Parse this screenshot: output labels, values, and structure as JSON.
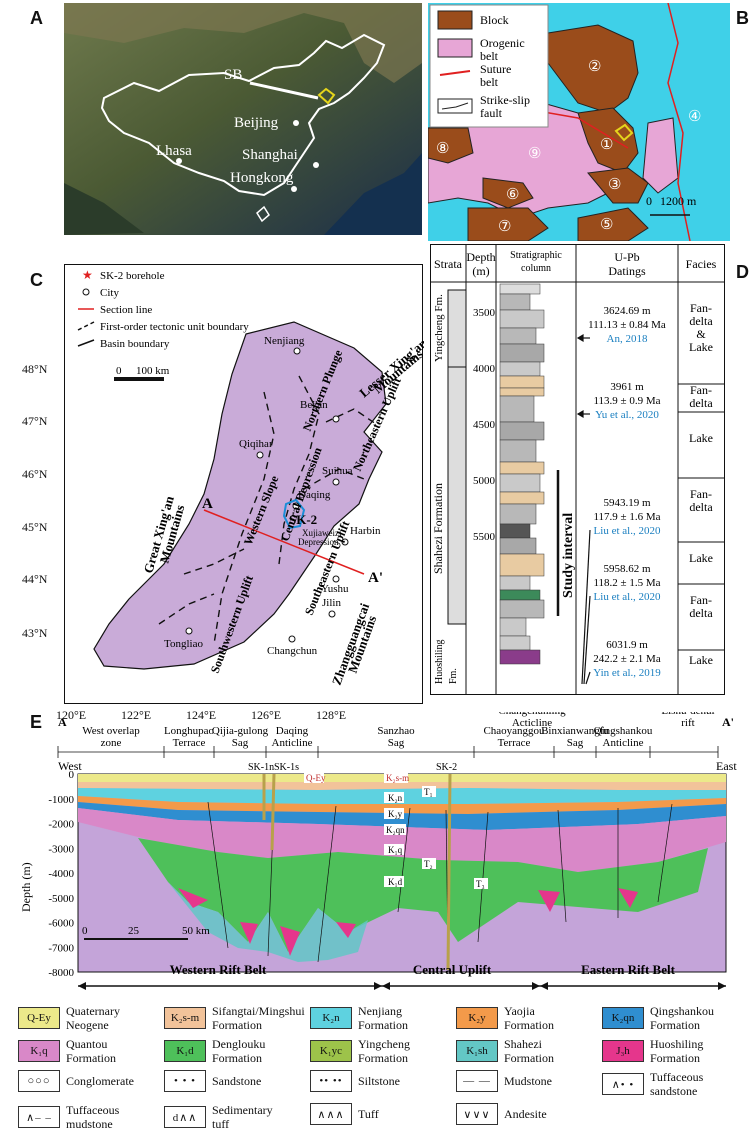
{
  "panels": {
    "A": "A",
    "B": "B",
    "C": "C",
    "D": "D",
    "E": "E"
  },
  "panel_a": {
    "sb": "SB",
    "beijing": "Beijing",
    "lhasa": "Lhasa",
    "shanghai": "Shanghai",
    "hongkong": "Hongkong"
  },
  "panel_b": {
    "legend": [
      {
        "label": "Block",
        "color": "#9a4c1b"
      },
      {
        "label": "Orogenic\nbelt",
        "color": "#e7a6d6"
      },
      {
        "label": "Suture\nbelt",
        "color": "#e02020"
      },
      {
        "label": "Strike-slip\nfault",
        "color": "#222222"
      }
    ],
    "circled": [
      "②",
      "①",
      "③",
      "④",
      "⑤",
      "⑥",
      "⑦",
      "⑧",
      "⑨"
    ],
    "scale_0": "0",
    "scale_len": "1200 m",
    "sea_color": "#3fd0e8"
  },
  "panel_c": {
    "legend": [
      "SK-2 borehole",
      "City",
      "Section line",
      "First-order tectonic unit boundary",
      "Basin boundary"
    ],
    "lat": [
      "48°N",
      "47°N",
      "46°N",
      "45°N",
      "44°N",
      "43°N"
    ],
    "lon": [
      "120°E",
      "122°E",
      "124°E",
      "126°E",
      "128°E"
    ],
    "scale_0": "0",
    "scale_len": "100 km",
    "cities": [
      "Nenjiang",
      "Bei'an",
      "Qiqihar",
      "Suihua",
      "Daqing",
      "Harbin",
      "Yushu",
      "Jilin",
      "Changchun",
      "Tongliao"
    ],
    "units": [
      "Northern Plunge",
      "Northeastern Uplift",
      "Western Slope",
      "Central Depression",
      "Southeastern Uplift",
      "Southwestern Uplift",
      "SK-2",
      "Xujiaweizi",
      "Depression"
    ],
    "mountains": [
      "Great Xing'an",
      "Mountains",
      "Lesser Xing'an",
      "Mountains",
      "Zhangguangcai",
      "Mountains"
    ],
    "line_a": "A",
    "line_a2": "A'",
    "basin_color": "#c9abd8"
  },
  "panel_d": {
    "headers": [
      "Strata",
      "Depth\n(m)",
      "Stratigraphic\ncolumn",
      "U-Pb\nDatings",
      "Facies"
    ],
    "fm": [
      "Yingcheng Fm.",
      "Shahezi Formation",
      "Huoshiling\nFm."
    ],
    "depths": [
      "3500",
      "4000",
      "4500",
      "5000",
      "5500"
    ],
    "datings": [
      {
        "depth": "3624.69 m",
        "age": "111.13 ± 0.84 Ma",
        "ref": "An, 2018"
      },
      {
        "depth": "3961 m",
        "age": "113.9 ± 0.9 Ma",
        "ref": "Yu et al., 2020"
      },
      {
        "depth": "5943.19 m",
        "age": "117.9 ± 1.6 Ma",
        "ref": "Liu et al., 2020"
      },
      {
        "depth": "5958.62 m",
        "age": "118.2 ± 1.5 Ma",
        "ref": "Liu et al., 2020"
      },
      {
        "depth": "6031.9 m",
        "age": "242.2 ± 2.1 Ma",
        "ref": "Yin et al., 2019"
      }
    ],
    "facies": [
      "Fan-\ndelta\n&\nLake",
      "Fan-\ndelta",
      "Lake",
      "Fan-\ndelta",
      "Lake",
      "Fan-\ndelta",
      "Lake"
    ],
    "study": "Study interval"
  },
  "panel_e": {
    "units_top": [
      "West overlap\nzone",
      "Longhupao\nTerrace",
      "Qijia-gulong\nSag",
      "Daqing\nAnticline",
      "Sanzhao\nSag",
      "Chaoyanggou\nTerrace",
      "Binxianwangfu\nSag",
      "Qingshankou\nAnticline"
    ],
    "units_high": [
      "Changchunling\nActicline",
      "Lishu-dehui\nrift"
    ],
    "end_a": "A",
    "end_a2": "A'",
    "west": "West",
    "east": "East",
    "ylabel": "Depth (m)",
    "yticks": [
      "0",
      "-1000",
      "-2000",
      "-3000",
      "-4000",
      "-5000",
      "-6000",
      "-7000",
      "-8000"
    ],
    "wells": [
      "SK-1n",
      "SK-1s",
      "SK-2"
    ],
    "scale": [
      "0",
      "25",
      "50 km"
    ],
    "belts": [
      "Western Rift Belt",
      "Central Uplift",
      "Eastern Rift Belt"
    ],
    "labels": [
      "Q-Ey",
      "K₂s-m",
      "K₂n",
      "K₂y",
      "K₂qn",
      "K₁q",
      "K₁d",
      "T₁",
      "T₂",
      "T₃"
    ]
  },
  "legend_rows": [
    [
      {
        "sw": "Q-Ey",
        "bg": "#ece98a",
        "text": "Quaternary\nNeogene"
      },
      {
        "sw": "K₂s-m",
        "bg": "#f2c39a",
        "text": "Sifangtai/Mingshui\nFormation"
      },
      {
        "sw": "K₂n",
        "bg": "#5ed2e0",
        "text": "Nenjiang\nFormation"
      },
      {
        "sw": "K₂y",
        "bg": "#f39a4a",
        "text": "Yaojia\nFormation"
      },
      {
        "sw": "K₂qn",
        "bg": "#2f8ed0",
        "text": "Qingshankou\nFormation"
      }
    ],
    [
      {
        "sw": "K₁q",
        "bg": "#d988c8",
        "text": "Quantou\nFormation"
      },
      {
        "sw": "K₁d",
        "bg": "#4ec05a",
        "text": "Denglouku\nFormation"
      },
      {
        "sw": "K₁yc",
        "bg": "#9dc34a",
        "text": "Yingcheng\nFormation"
      },
      {
        "sw": "K₁sh",
        "bg": "#63c7c5",
        "text": "Shahezi\nFormation"
      },
      {
        "sw": "J₃h",
        "bg": "#e5368c",
        "text": "Huoshiling\nFormation"
      }
    ],
    [
      {
        "sw": "○○○",
        "bg": "#ffffff",
        "text": "Conglomerate"
      },
      {
        "sw": "• • •",
        "bg": "#ffffff",
        "text": "Sandstone"
      },
      {
        "sw": "•• ••",
        "bg": "#ffffff",
        "text": "Siltstone"
      },
      {
        "sw": "— —",
        "bg": "#ffffff",
        "text": "Mudstone"
      },
      {
        "sw": "∧• •",
        "bg": "#ffffff",
        "text": "Tuffaceous\nsandstone"
      }
    ],
    [
      {
        "sw": "∧– –",
        "bg": "#ffffff",
        "text": "Tuffaceous\nmudstone"
      },
      {
        "sw": "d∧∧",
        "bg": "#ffffff",
        "text": "Sedimentary\ntuff"
      },
      {
        "sw": "∧∧∧",
        "bg": "#ffffff",
        "text": "Tuff"
      },
      {
        "sw": "∨∨∨",
        "bg": "#ffffff",
        "text": "Andesite"
      }
    ]
  ]
}
